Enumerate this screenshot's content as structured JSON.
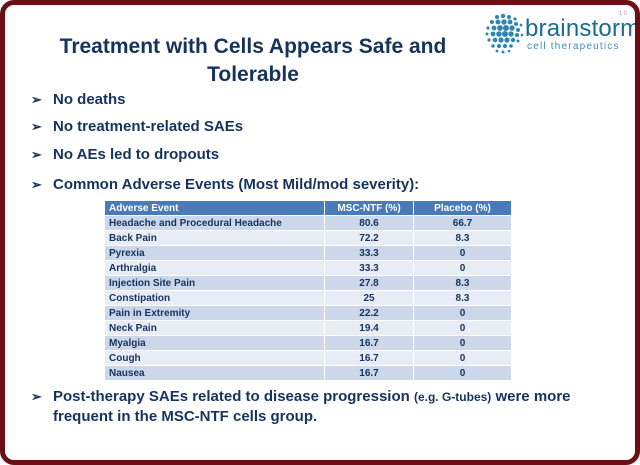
{
  "slide_number": "1 0",
  "logo": {
    "word": "brainstorm",
    "sub": "cell therapeutics"
  },
  "title": {
    "line1": "Treatment with Cells Appears Safe and",
    "line2": "Tolerable"
  },
  "bullets": [
    "No deaths",
    "No treatment-related SAEs",
    "No AEs led to dropouts",
    "Common Adverse Events (Most Mild/mod severity):"
  ],
  "table": {
    "headers": [
      "Adverse Event",
      "MSC-NTF (%)",
      "Placebo (%)"
    ],
    "rows": [
      [
        "Headache and Procedural Headache",
        "80.6",
        "66.7"
      ],
      [
        "Back Pain",
        "72.2",
        "8.3"
      ],
      [
        "Pyrexia",
        "33.3",
        "0"
      ],
      [
        "Arthralgia",
        "33.3",
        "0"
      ],
      [
        "Injection Site Pain",
        "27.8",
        "8.3"
      ],
      [
        "Constipation",
        "25",
        "8.3"
      ],
      [
        "Pain in Extremity",
        "22.2",
        "0"
      ],
      [
        "Neck Pain",
        "19.4",
        "0"
      ],
      [
        "Myalgia",
        "16.7",
        "0"
      ],
      [
        "Cough",
        "16.7",
        "0"
      ],
      [
        "Nausea",
        "16.7",
        "0"
      ]
    ]
  },
  "last_bullet": {
    "part1": "Post-therapy SAEs related to disease progression ",
    "part2_small": "(e.g. G-tubes)",
    "part3": " were more frequent in the MSC-NTF cells group."
  },
  "colors": {
    "frame": "#6b0f17",
    "title": "#16335e",
    "header_bg": "#4a7ab8",
    "row_dark": "#ccd7ea",
    "row_light": "#e7ecf5",
    "logo": "#1a6a91"
  }
}
